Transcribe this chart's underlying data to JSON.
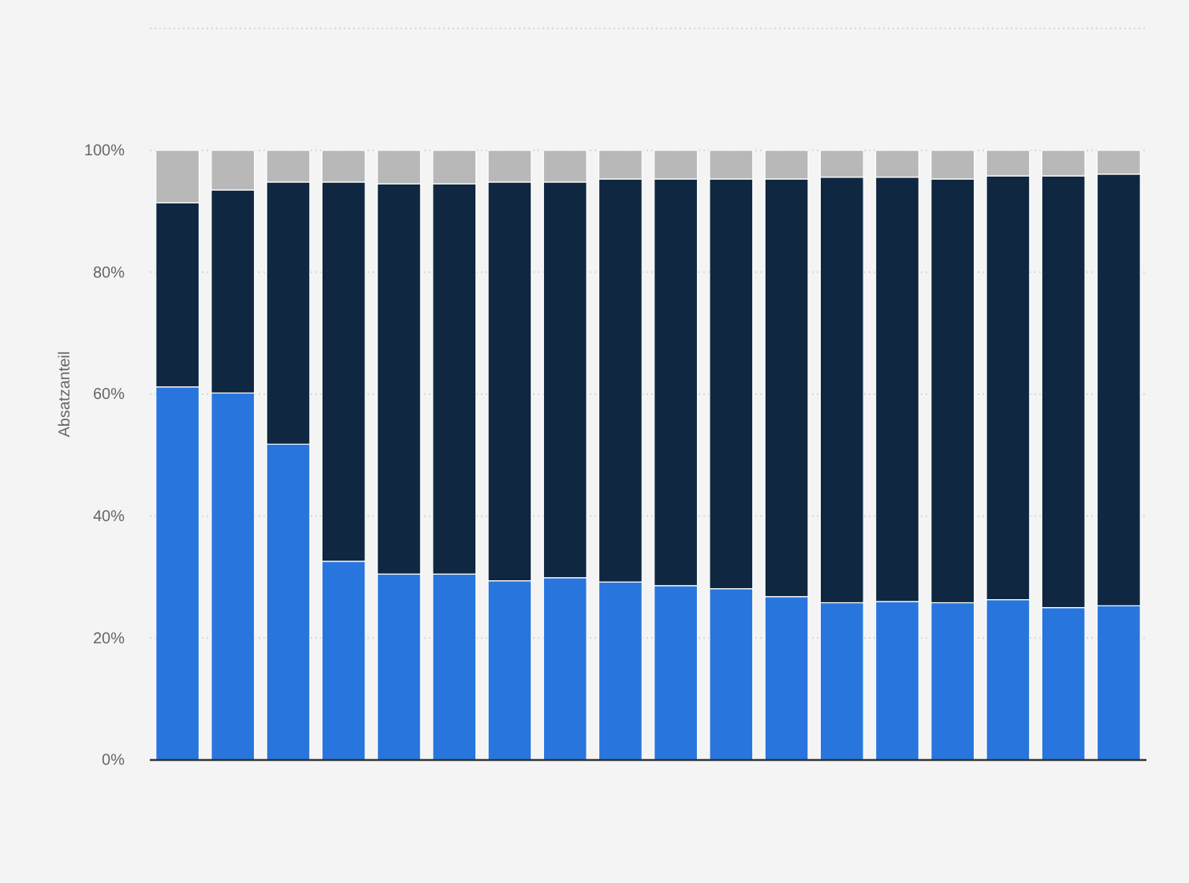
{
  "chart_data": {
    "type": "bar",
    "stacked": true,
    "ylabel": "Absatzanteil",
    "categories": [
      null,
      null,
      null,
      null,
      null,
      null,
      null,
      null,
      null,
      null,
      null,
      null,
      null,
      null,
      null,
      null,
      null,
      null
    ],
    "series": [
      {
        "color": "#2876dd",
        "values": [
          61.2,
          60.2,
          51.8,
          32.6,
          30.5,
          30.5,
          29.4,
          29.9,
          29.2,
          28.6,
          28.1,
          26.8,
          25.8,
          26.0,
          25.8,
          26.3,
          25.0,
          25.3
        ]
      },
      {
        "color": "#0f2740",
        "values": [
          30.2,
          33.3,
          43.0,
          62.2,
          64.0,
          64.0,
          65.4,
          64.9,
          66.1,
          66.7,
          67.2,
          68.5,
          69.8,
          69.6,
          69.5,
          69.5,
          70.8,
          70.8
        ]
      },
      {
        "color": "#b8b8b8",
        "values": [
          8.6,
          6.5,
          5.2,
          5.2,
          5.5,
          5.5,
          5.2,
          5.2,
          4.7,
          4.7,
          4.7,
          4.7,
          4.4,
          4.4,
          4.7,
          4.2,
          4.2,
          3.9
        ]
      }
    ],
    "ylim": [
      0,
      120
    ],
    "yticks": [
      {
        "value": 0,
        "label": "0%"
      },
      {
        "value": 20,
        "label": "20%"
      },
      {
        "value": 40,
        "label": "40%"
      },
      {
        "value": 60,
        "label": "60%"
      },
      {
        "value": 80,
        "label": "80%"
      },
      {
        "value": 100,
        "label": "100%"
      },
      {
        "value": 120,
        "label": null
      }
    ],
    "grid": "y"
  }
}
